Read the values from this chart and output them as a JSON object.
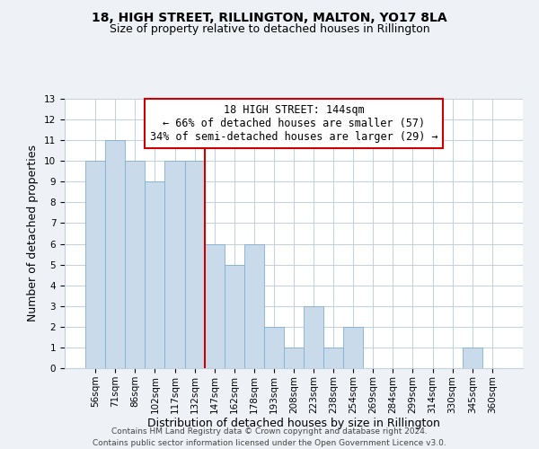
{
  "title": "18, HIGH STREET, RILLINGTON, MALTON, YO17 8LA",
  "subtitle": "Size of property relative to detached houses in Rillington",
  "xlabel": "Distribution of detached houses by size in Rillington",
  "ylabel": "Number of detached properties",
  "bin_labels": [
    "56sqm",
    "71sqm",
    "86sqm",
    "102sqm",
    "117sqm",
    "132sqm",
    "147sqm",
    "162sqm",
    "178sqm",
    "193sqm",
    "208sqm",
    "223sqm",
    "238sqm",
    "254sqm",
    "269sqm",
    "284sqm",
    "299sqm",
    "314sqm",
    "330sqm",
    "345sqm",
    "360sqm"
  ],
  "bar_heights": [
    10,
    11,
    10,
    9,
    10,
    10,
    6,
    5,
    6,
    2,
    1,
    3,
    1,
    2,
    0,
    0,
    0,
    0,
    0,
    1,
    0
  ],
  "bar_color": "#c9daea",
  "bar_edge_color": "#7fb0d0",
  "highlight_index": 6,
  "highlight_line_color": "#cc0000",
  "annotation_box_edge_color": "#cc0000",
  "annotation_lines": [
    "18 HIGH STREET: 144sqm",
    "← 66% of detached houses are smaller (57)",
    "34% of semi-detached houses are larger (29) →"
  ],
  "ylim": [
    0,
    13
  ],
  "yticks": [
    0,
    1,
    2,
    3,
    4,
    5,
    6,
    7,
    8,
    9,
    10,
    11,
    12,
    13
  ],
  "footer_lines": [
    "Contains HM Land Registry data © Crown copyright and database right 2024.",
    "Contains public sector information licensed under the Open Government Licence v3.0."
  ],
  "background_color": "#eef2f7",
  "plot_bg_color": "#ffffff",
  "grid_color": "#c0d0e0",
  "title_fontsize": 10,
  "subtitle_fontsize": 9,
  "axis_label_fontsize": 9,
  "tick_fontsize": 7.5,
  "annotation_fontsize": 8.5,
  "footer_fontsize": 6.5
}
